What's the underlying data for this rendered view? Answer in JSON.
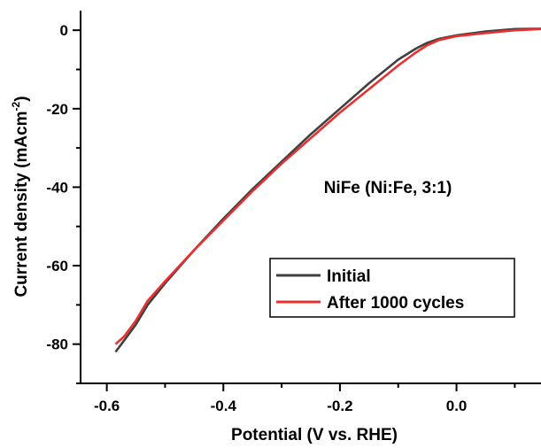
{
  "chart_data": {
    "type": "line",
    "title": "",
    "xlabel": "Potential (V vs. RHE)",
    "ylabel_main": "Current density (mAcm",
    "ylabel_sup": "-2",
    "ylabel_close": ")",
    "xlim": [
      -0.645,
      0.145
    ],
    "ylim": [
      -90,
      5
    ],
    "xticks": [
      -0.6,
      -0.4,
      -0.2,
      0.0
    ],
    "xtick_labels": [
      "-0.6",
      "-0.4",
      "-0.2",
      "0.0"
    ],
    "yticks": [
      0,
      -20,
      -40,
      -60,
      -80
    ],
    "ytick_labels": [
      "0",
      "-20",
      "-40",
      "-60",
      "-80"
    ],
    "annotation": "NiFe (Ni:Fe, 3:1)",
    "legend_position": "center-right",
    "grid": false,
    "series": [
      {
        "name": "Initial",
        "color": "#404040",
        "x": [
          -0.585,
          -0.57,
          -0.55,
          -0.53,
          -0.5,
          -0.45,
          -0.4,
          -0.35,
          -0.3,
          -0.25,
          -0.2,
          -0.15,
          -0.1,
          -0.07,
          -0.05,
          -0.03,
          0.0,
          0.05,
          0.1,
          0.145
        ],
        "y": [
          -82,
          -79,
          -75,
          -70,
          -64.5,
          -56,
          -48,
          -40.5,
          -33.5,
          -26.5,
          -20,
          -13.5,
          -7.5,
          -4.7,
          -3.2,
          -2.2,
          -1.3,
          -0.3,
          0.3,
          0.4
        ]
      },
      {
        "name": "After 1000 cycles",
        "color": "#e83030",
        "x": [
          -0.585,
          -0.57,
          -0.55,
          -0.53,
          -0.5,
          -0.45,
          -0.4,
          -0.35,
          -0.3,
          -0.25,
          -0.2,
          -0.15,
          -0.1,
          -0.07,
          -0.05,
          -0.03,
          0.0,
          0.05,
          0.1,
          0.145
        ],
        "y": [
          -80,
          -78,
          -74,
          -69,
          -64,
          -56,
          -48.5,
          -41,
          -34,
          -27.5,
          -21,
          -15,
          -9,
          -5.7,
          -3.8,
          -2.5,
          -1.5,
          -0.7,
          0.0,
          0.3
        ]
      }
    ]
  }
}
